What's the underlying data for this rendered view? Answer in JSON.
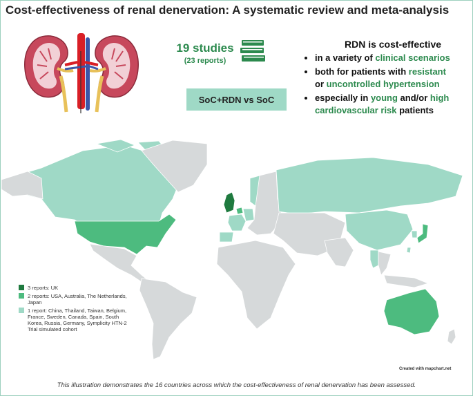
{
  "title": "Cost-effectiveness of renal denervation: A systematic review and meta-analysis",
  "studies": {
    "count_label": "19 studies",
    "reports_label": "(23 reports)"
  },
  "comparison": "SoC+RDN vs SoC",
  "rdn_box": {
    "heading": "RDN is cost-effective",
    "bullet1_pre": "in a variety of ",
    "bullet1_em": "clinical scenarios",
    "bullet2_pre": "both for patients with ",
    "bullet2_em": "resistant",
    "bullet2_cont_pre": "or ",
    "bullet2_cont_em": "uncontrolled hypertension",
    "bullet3_pre": "especially in ",
    "bullet3_em1": "young",
    "bullet3_mid": " and/or ",
    "bullet3_em2": "high",
    "bullet3_em3": "cardiovascular risk",
    "bullet3_post": " patients"
  },
  "legend": [
    {
      "label": "3 reports: UK",
      "color": "#1f7a3f"
    },
    {
      "label": "2 reports: USA, Australia, The Netherlands, Japan",
      "color": "#4dbb7f"
    },
    {
      "label": "1 report: China, Thailand, Taiwan, Belgium, France, Sweden, Canada, Spain, South Korea, Russia, Germany, Symplicity HTN-2 Trial simulated cohort",
      "color": "#9fd9c6"
    }
  ],
  "map_colors": {
    "none": "#d6d9da",
    "one": "#9fd9c6",
    "two": "#4dbb7f",
    "three": "#1f7a3f",
    "border": "#ffffff"
  },
  "credit": "Created with mapchart.net",
  "caption": "This illustration demonstrates the 16 countries across which the cost-effectiveness of renal denervation has been assessed."
}
